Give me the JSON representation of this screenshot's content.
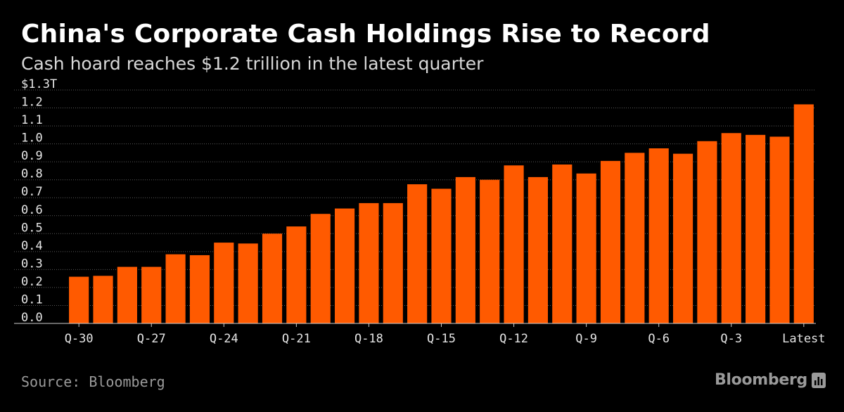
{
  "chart_data": {
    "type": "bar",
    "title": "China's Corporate Cash Holdings Rise to Record",
    "subtitle": "Cash hoard reaches $1.2 trillion in the latest quarter",
    "unit_label": "$1.3T",
    "xlabel": "",
    "ylabel": "",
    "ylim": [
      0,
      1.3
    ],
    "ytick_values": [
      0.0,
      0.1,
      0.2,
      0.3,
      0.4,
      0.5,
      0.6,
      0.7,
      0.8,
      0.9,
      1.0,
      1.1,
      1.2,
      1.3
    ],
    "ytick_labels": [
      "0.0",
      "0.1",
      "0.2",
      "0.3",
      "0.4",
      "0.5",
      "0.6",
      "0.7",
      "0.8",
      "0.9",
      "1.0",
      "1.1",
      "1.2",
      "$1.3T"
    ],
    "categories": [
      "Q-30",
      "Q-29",
      "Q-28",
      "Q-27",
      "Q-26",
      "Q-25",
      "Q-24",
      "Q-23",
      "Q-22",
      "Q-21",
      "Q-20",
      "Q-19",
      "Q-18",
      "Q-17",
      "Q-16",
      "Q-15",
      "Q-14",
      "Q-13",
      "Q-12",
      "Q-11",
      "Q-10",
      "Q-9",
      "Q-8",
      "Q-7",
      "Q-6",
      "Q-5",
      "Q-4",
      "Q-3",
      "Q-2",
      "Q-1",
      "Latest"
    ],
    "xtick_labels": [
      "Q-30",
      "Q-27",
      "Q-24",
      "Q-21",
      "Q-18",
      "Q-15",
      "Q-12",
      "Q-9",
      "Q-6",
      "Q-3",
      "Latest"
    ],
    "values": [
      0.26,
      0.265,
      0.315,
      0.315,
      0.385,
      0.38,
      0.45,
      0.445,
      0.5,
      0.54,
      0.61,
      0.64,
      0.67,
      0.67,
      0.775,
      0.75,
      0.815,
      0.8,
      0.88,
      0.815,
      0.885,
      0.835,
      0.905,
      0.95,
      0.975,
      0.945,
      1.015,
      1.06,
      1.05,
      1.04,
      1.22
    ],
    "grid": true,
    "legend": "none",
    "bar_color": "#ff5a00",
    "grid_color": "#5a5a5a"
  },
  "footer": {
    "source": "Source: Bloomberg",
    "brand": "Bloomberg"
  }
}
